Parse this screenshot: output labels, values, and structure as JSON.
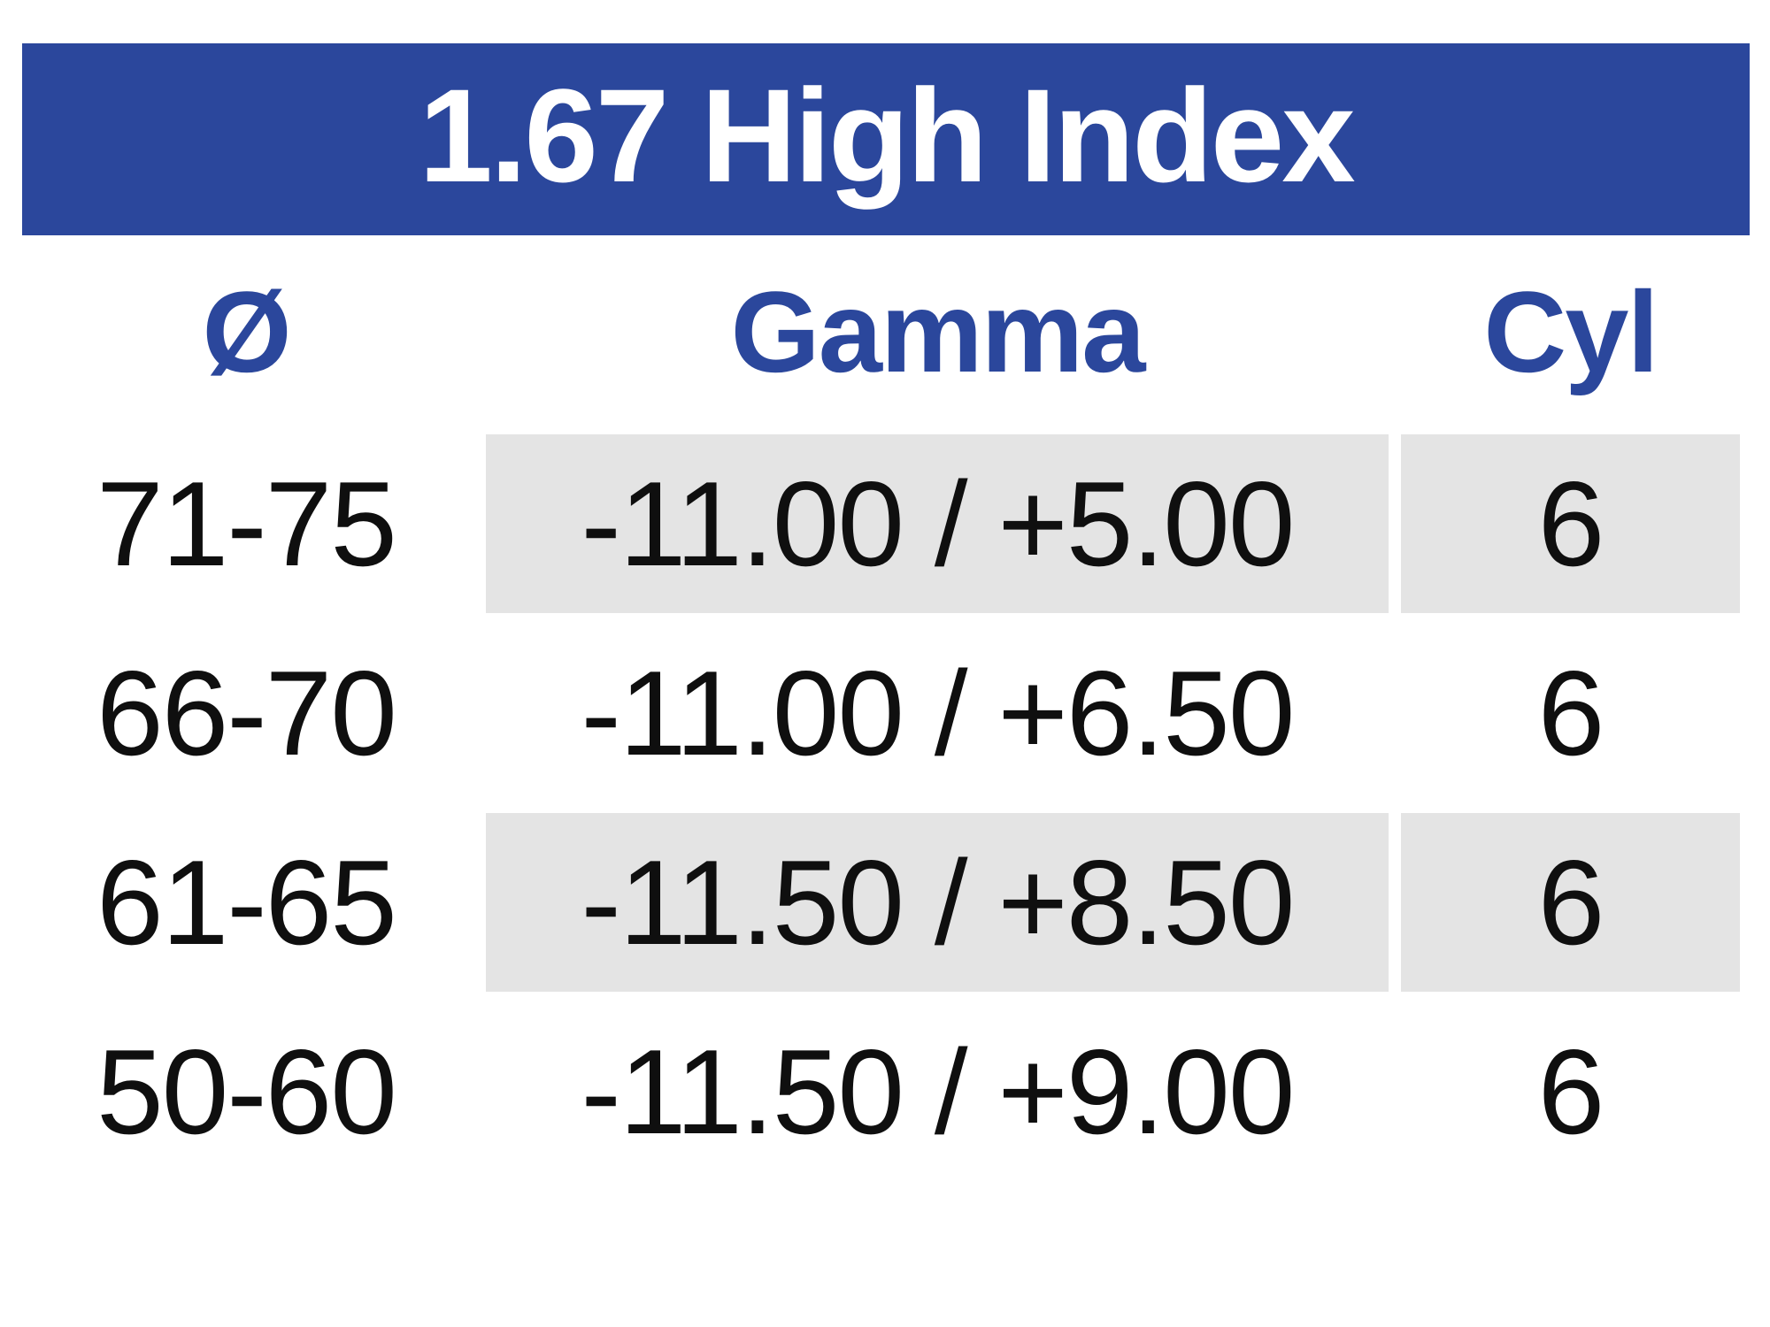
{
  "title": "1.67 High Index",
  "columns": {
    "diameter_label": "Ø",
    "gamma_label": "Gamma",
    "cyl_label": "Cyl"
  },
  "rows": [
    {
      "diameter": "71-75",
      "gamma": "-11.00 / +5.00",
      "cyl": "6",
      "shaded": true
    },
    {
      "diameter": "66-70",
      "gamma": "-11.00 / +6.50",
      "cyl": "6",
      "shaded": false
    },
    {
      "diameter": "61-65",
      "gamma": "-11.50 / +8.50",
      "cyl": "6",
      "shaded": true
    },
    {
      "diameter": "50-60",
      "gamma": "-11.50 / +9.00",
      "cyl": "6",
      "shaded": false
    }
  ],
  "colors": {
    "title_bar_bg": "#2b479c",
    "title_text": "#ffffff",
    "column_header_text": "#2b479c",
    "shaded_cell_bg": "#e4e4e4",
    "body_text": "#0f0f0f",
    "page_bg": "#ffffff"
  }
}
